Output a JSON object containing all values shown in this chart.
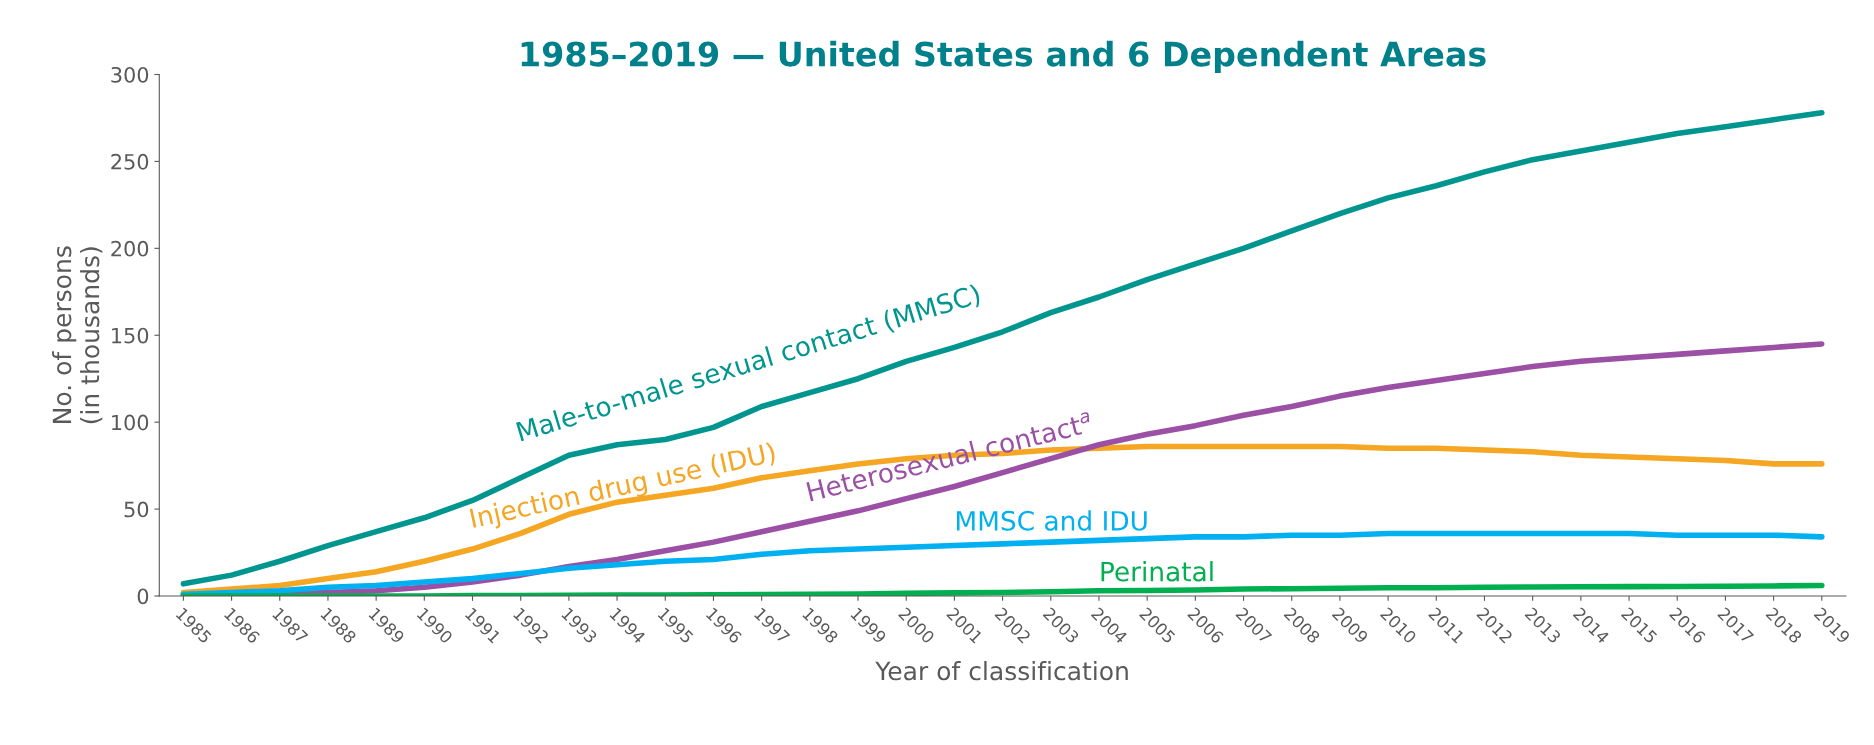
{
  "chart_data": {
    "type": "line",
    "title": "1985–2019 — United States and 6 Dependent Areas",
    "xlabel": "Year of classification",
    "ylabel": "No. of persons\n(in thousands)",
    "categories": [
      "1985",
      "1986",
      "1987",
      "1988",
      "1989",
      "1990",
      "1991",
      "1992",
      "1993",
      "1994",
      "1995",
      "1996",
      "1997",
      "1998",
      "1999",
      "2000",
      "2001",
      "2002",
      "2003",
      "2004",
      "2005",
      "2006",
      "2007",
      "2008",
      "2009",
      "2010",
      "2011",
      "2012",
      "2013",
      "2014",
      "2015",
      "2016",
      "2017",
      "2018",
      "2019"
    ],
    "ylim": [
      0,
      300
    ],
    "yticks": [
      0,
      50,
      100,
      150,
      200,
      250,
      300
    ],
    "grid": false,
    "legend": false,
    "marker": "none",
    "line_style": "solid",
    "series": [
      {
        "name": "Male-to-male sexual contact (MMSC)",
        "color": "#00968f",
        "values": [
          7,
          12,
          20,
          29,
          37,
          45,
          55,
          68,
          81,
          87,
          90,
          97,
          109,
          117,
          125,
          135,
          143,
          152,
          163,
          172,
          182,
          191,
          200,
          210,
          220,
          229,
          236,
          244,
          251,
          256,
          261,
          266,
          270,
          274,
          278
        ]
      },
      {
        "name": "Injection drug use (IDU)",
        "color": "#f5a623",
        "values": [
          2,
          4,
          6,
          10,
          14,
          20,
          27,
          36,
          47,
          54,
          58,
          62,
          68,
          72,
          76,
          79,
          81,
          82,
          84,
          85,
          86,
          86,
          86,
          86,
          86,
          85,
          85,
          84,
          83,
          81,
          80,
          79,
          78,
          76,
          76
        ]
      },
      {
        "name": "Heterosexual contact$^{a}$",
        "color": "#9b4fa5",
        "values": [
          0.5,
          1,
          1.5,
          2,
          3,
          5,
          8,
          12,
          17,
          21,
          26,
          31,
          37,
          43,
          49,
          56,
          63,
          71,
          79,
          87,
          93,
          98,
          104,
          109,
          115,
          120,
          124,
          128,
          132,
          135,
          137,
          139,
          141,
          143,
          145
        ]
      },
      {
        "name": "MMSC and IDU",
        "color": "#00b0f0",
        "values": [
          1,
          2,
          3,
          5,
          6,
          8,
          10,
          13,
          16,
          18,
          20,
          21,
          24,
          26,
          27,
          28,
          29,
          30,
          31,
          32,
          33,
          34,
          34,
          35,
          35,
          36,
          36,
          36,
          36,
          36,
          36,
          35,
          35,
          35,
          34
        ]
      },
      {
        "name": "Perinatal",
        "color": "#00b050",
        "values": [
          0,
          0,
          0,
          0,
          0,
          0,
          0.2,
          0.3,
          0.4,
          0.5,
          0.6,
          0.7,
          0.8,
          1,
          1.2,
          1.5,
          1.8,
          2,
          2.5,
          3,
          3.2,
          3.5,
          4,
          4.2,
          4.5,
          4.7,
          4.8,
          5,
          5.2,
          5.3,
          5.4,
          5.5,
          5.6,
          5.8,
          6
        ]
      }
    ]
  }
}
